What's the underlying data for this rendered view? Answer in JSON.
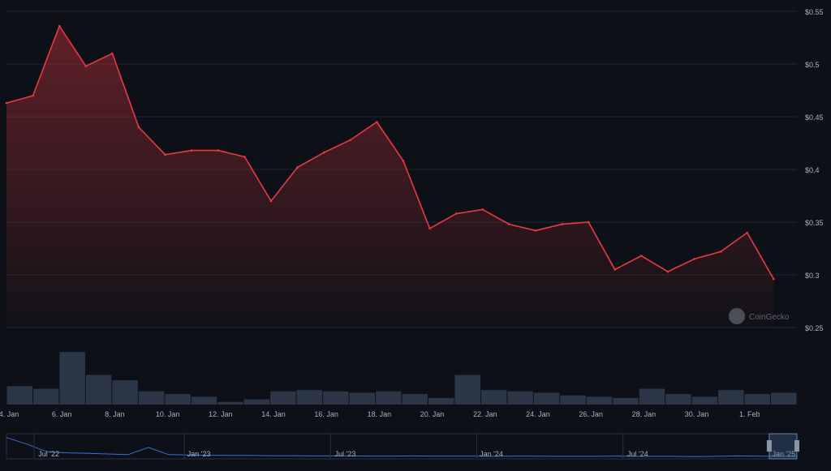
{
  "watermark": {
    "text": "CoinGecko",
    "icon": "coingecko-logo-icon"
  },
  "colors": {
    "background": "#0d1117",
    "price_line": "#ea3943",
    "grid": "#1f2630",
    "volume": "#2b3646",
    "navigator_line": "#3b6fd1",
    "text": "#aab2bd"
  },
  "chart_data": {
    "type": "area",
    "series": [
      {
        "values_kind": "price",
        "x": [
          "2024-01-04",
          "2024-01-05",
          "2024-01-06",
          "2024-01-07",
          "2024-01-08",
          "2024-01-09",
          "2024-01-10",
          "2024-01-11",
          "2024-01-12",
          "2024-01-13",
          "2024-01-14",
          "2024-01-15",
          "2024-01-16",
          "2024-01-17",
          "2024-01-18",
          "2024-01-19",
          "2024-01-20",
          "2024-01-21",
          "2024-01-22",
          "2024-01-23",
          "2024-01-24",
          "2024-01-25",
          "2024-01-26",
          "2024-01-27",
          "2024-01-28",
          "2024-01-29",
          "2024-01-30",
          "2024-01-31",
          "2024-02-01",
          "2024-02-02"
        ],
        "values": [
          0.463,
          0.47,
          0.536,
          0.498,
          0.51,
          0.44,
          0.414,
          0.418,
          0.418,
          0.412,
          0.37,
          0.402,
          0.416,
          0.428,
          0.445,
          0.408,
          0.344,
          0.358,
          0.362,
          0.348,
          0.342,
          0.348,
          0.35,
          0.305,
          0.318,
          0.303,
          0.315,
          0.322,
          0.34,
          0.296
        ]
      }
    ],
    "volume": {
      "values_kind": "relative_volume",
      "values": [
        0.28,
        0.24,
        0.8,
        0.45,
        0.37,
        0.2,
        0.16,
        0.12,
        0.04,
        0.08,
        0.2,
        0.22,
        0.2,
        0.18,
        0.2,
        0.16,
        0.1,
        0.45,
        0.22,
        0.2,
        0.18,
        0.14,
        0.12,
        0.1,
        0.24,
        0.16,
        0.12,
        0.22,
        0.16,
        0.18
      ]
    },
    "xlim": [
      "2024-01-04",
      "2024-02-02"
    ],
    "ylim": [
      0.25,
      0.55
    ],
    "y_ticks": [
      {
        "value": 0.55,
        "label": "$0.55"
      },
      {
        "value": 0.5,
        "label": "$0.5"
      },
      {
        "value": 0.45,
        "label": "$0.45"
      },
      {
        "value": 0.4,
        "label": "$0.4"
      },
      {
        "value": 0.35,
        "label": "$0.35"
      },
      {
        "value": 0.3,
        "label": "$0.3"
      },
      {
        "value": 0.25,
        "label": "$0.25"
      }
    ],
    "x_ticks": [
      {
        "date": "2024-01-04",
        "label": "4. Jan"
      },
      {
        "date": "2024-01-06",
        "label": "6. Jan"
      },
      {
        "date": "2024-01-08",
        "label": "8. Jan"
      },
      {
        "date": "2024-01-10",
        "label": "10. Jan"
      },
      {
        "date": "2024-01-12",
        "label": "12. Jan"
      },
      {
        "date": "2024-01-14",
        "label": "14. Jan"
      },
      {
        "date": "2024-01-16",
        "label": "16. Jan"
      },
      {
        "date": "2024-01-18",
        "label": "18. Jan"
      },
      {
        "date": "2024-01-20",
        "label": "20. Jan"
      },
      {
        "date": "2024-01-22",
        "label": "22. Jan"
      },
      {
        "date": "2024-01-24",
        "label": "24. Jan"
      },
      {
        "date": "2024-01-26",
        "label": "26. Jan"
      },
      {
        "date": "2024-01-28",
        "label": "28. Jan"
      },
      {
        "date": "2024-01-30",
        "label": "30. Jan"
      },
      {
        "date": "2024-02-01",
        "label": "1. Feb"
      }
    ],
    "grid": true,
    "navigator": {
      "labels": [
        "Jul '22",
        "Jan '23",
        "Jul '23",
        "Jan '24",
        "Jul '24",
        "Jan '25"
      ],
      "label_fractions": [
        0.035,
        0.225,
        0.41,
        0.595,
        0.78,
        0.965
      ],
      "values": [
        0.9,
        0.6,
        0.25,
        0.2,
        0.18,
        0.15,
        0.12,
        0.45,
        0.12,
        0.1,
        0.09,
        0.08,
        0.08,
        0.07,
        0.07,
        0.06,
        0.06,
        0.06,
        0.05,
        0.05,
        0.06,
        0.05,
        0.05,
        0.05,
        0.04,
        0.05,
        0.05,
        0.04,
        0.04,
        0.04,
        0.05,
        0.04,
        0.04,
        0.04,
        0.03,
        0.04,
        0.06,
        0.05,
        0.04,
        0.04
      ],
      "window": [
        0.965,
        1.0
      ]
    }
  }
}
